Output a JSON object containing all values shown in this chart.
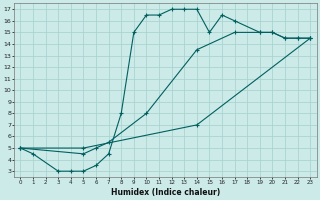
{
  "xlabel": "Humidex (Indice chaleur)",
  "bg_color": "#cceae8",
  "grid_color": "#aad4d0",
  "line_color": "#006060",
  "xlim": [
    -0.5,
    23.5
  ],
  "ylim": [
    2.5,
    17.5
  ],
  "xticks": [
    0,
    1,
    2,
    3,
    4,
    5,
    6,
    7,
    8,
    9,
    10,
    11,
    12,
    13,
    14,
    15,
    16,
    17,
    18,
    19,
    20,
    21,
    22,
    23
  ],
  "yticks": [
    3,
    4,
    5,
    6,
    7,
    8,
    9,
    10,
    11,
    12,
    13,
    14,
    15,
    16,
    17
  ],
  "curve1_x": [
    0,
    1,
    3,
    4,
    5,
    6,
    7,
    8,
    9,
    10,
    11,
    12,
    13,
    14,
    15,
    16,
    17,
    19,
    20,
    21,
    22,
    23
  ],
  "curve1_y": [
    5,
    4.5,
    3,
    3,
    3,
    3.5,
    4.5,
    8.0,
    15.0,
    16.5,
    16.5,
    17.0,
    17.0,
    17.0,
    15.0,
    16.5,
    16.0,
    15.0,
    15.0,
    14.5,
    14.5,
    14.5
  ],
  "curve2_x": [
    0,
    5,
    6,
    7,
    10,
    14,
    17,
    19,
    20,
    21,
    22,
    23
  ],
  "curve2_y": [
    5,
    4.5,
    5.0,
    5.5,
    8.0,
    13.5,
    15.0,
    15.0,
    15.0,
    14.5,
    14.5,
    14.5
  ],
  "curve3_x": [
    0,
    5,
    14,
    23
  ],
  "curve3_y": [
    5,
    5.0,
    7.0,
    14.5
  ]
}
